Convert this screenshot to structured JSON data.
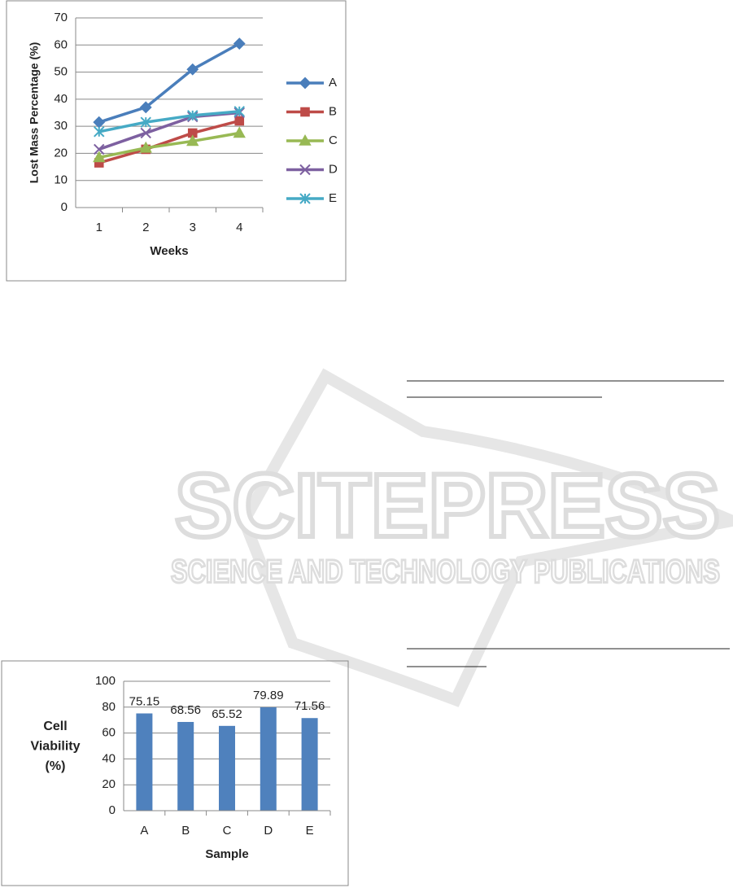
{
  "chart_data": [
    {
      "type": "line",
      "xlabel": "Weeks",
      "ylabel": "Lost Mass Percentage (%)",
      "categories": [
        "1",
        "2",
        "3",
        "4"
      ],
      "series": [
        {
          "name": "A",
          "color": "#4a7ebb",
          "marker": "diamond",
          "values": [
            31.5,
            37,
            51,
            60.5
          ]
        },
        {
          "name": "B",
          "color": "#be4b48",
          "marker": "square",
          "values": [
            16.5,
            21.5,
            27.5,
            32
          ]
        },
        {
          "name": "C",
          "color": "#98b954",
          "marker": "triangle",
          "values": [
            18.5,
            22,
            24.5,
            27.5
          ]
        },
        {
          "name": "D",
          "color": "#7d60a0",
          "marker": "x",
          "values": [
            21.5,
            27.5,
            33.5,
            35
          ]
        },
        {
          "name": "E",
          "color": "#46aac5",
          "marker": "star",
          "values": [
            28,
            31.5,
            34,
            35.5
          ]
        }
      ],
      "ylim": [
        0,
        70
      ],
      "yticks": [
        0,
        10,
        20,
        30,
        40,
        50,
        60,
        70
      ],
      "grid": true,
      "legend": "right"
    },
    {
      "type": "bar",
      "xlabel": "Sample",
      "ylabel": [
        "Cell",
        "Viability",
        "(%)"
      ],
      "categories": [
        "A",
        "B",
        "C",
        "D",
        "E"
      ],
      "values": [
        75.15,
        68.56,
        65.52,
        79.89,
        71.56
      ],
      "value_labels": [
        "75.15",
        "68.56",
        "65.52",
        "79.89",
        "71.56"
      ],
      "color": "#4f81bd",
      "ylim": [
        0,
        100
      ],
      "yticks": [
        0,
        20,
        40,
        60,
        80,
        100
      ],
      "grid": true
    }
  ],
  "watermark": {
    "title": "SCITEPRESS",
    "subtitle": "SCIENCE AND TECHNOLOGY PUBLICATIONS"
  }
}
